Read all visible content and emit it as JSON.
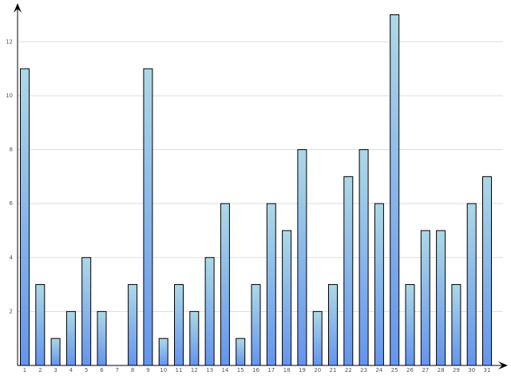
{
  "chart_data": {
    "type": "bar",
    "categories": [
      "1",
      "2",
      "3",
      "4",
      "5",
      "6",
      "7",
      "8",
      "9",
      "10",
      "11",
      "12",
      "13",
      "14",
      "15",
      "16",
      "17",
      "18",
      "19",
      "20",
      "21",
      "22",
      "23",
      "24",
      "25",
      "26",
      "27",
      "28",
      "29",
      "30",
      "31"
    ],
    "values": [
      11,
      3,
      1,
      2,
      4,
      2,
      0,
      3,
      11,
      1,
      3,
      2,
      4,
      6,
      1,
      3,
      6,
      5,
      8,
      2,
      3,
      7,
      8,
      6,
      13,
      3,
      5,
      5,
      3,
      6,
      7
    ],
    "color_top": "#add8e6",
    "color_bottom": "#6495ed",
    "edge_color": "#000000",
    "ylim": [
      0,
      13.4
    ],
    "yticks": [
      2,
      4,
      6,
      8,
      10,
      12
    ],
    "grid": true
  }
}
